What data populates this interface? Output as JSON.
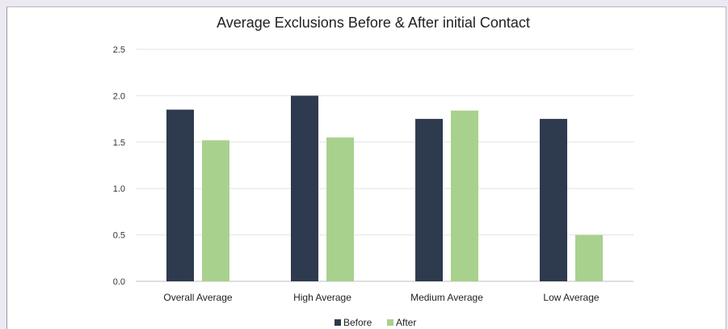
{
  "chart_data": {
    "type": "bar",
    "title": "Average Exclusions Before & After initial Contact",
    "categories": [
      "Overall Average",
      "High Average",
      "Medium Average",
      "Low Average"
    ],
    "series": [
      {
        "name": "Before",
        "values": [
          1.85,
          2.0,
          1.75,
          1.75
        ],
        "color": "#2e3a4e"
      },
      {
        "name": "After",
        "values": [
          1.52,
          1.55,
          1.84,
          0.5
        ],
        "color": "#a9d18e"
      }
    ],
    "yticks": [
      "0.0",
      "0.5",
      "1.0",
      "1.5",
      "2.0",
      "2.5"
    ],
    "ylim": [
      0,
      2.5
    ],
    "grid": true,
    "legend": "bottom-center"
  }
}
